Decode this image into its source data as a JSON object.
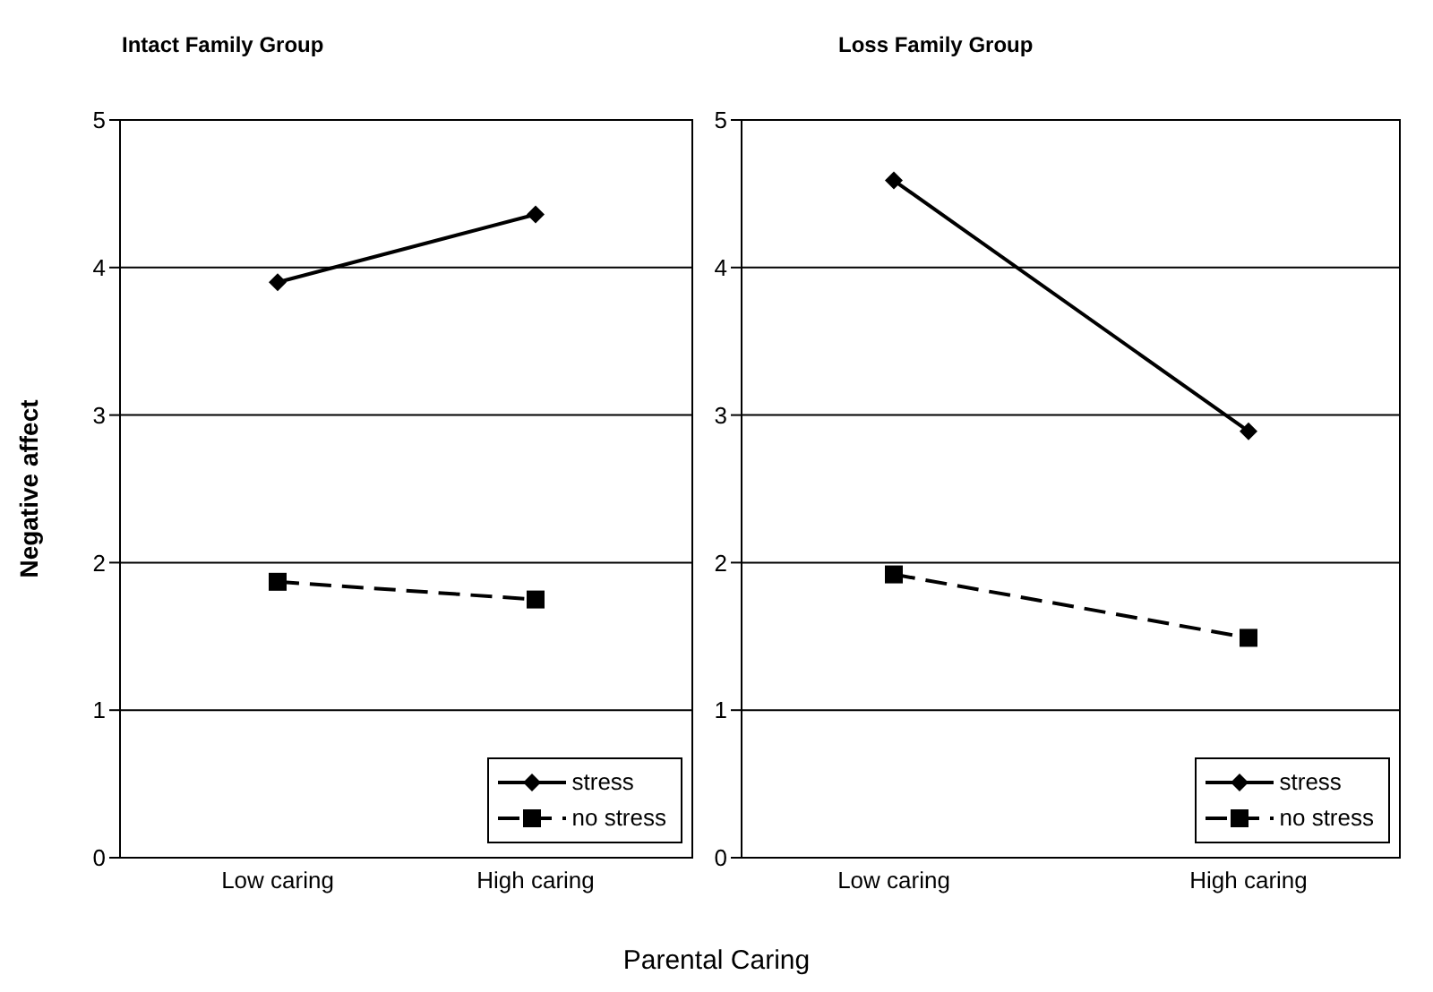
{
  "chart_data": [
    {
      "type": "line",
      "title": "Intact Family Group",
      "ylabel": "Negative affect",
      "xlabel": "Parental Caring",
      "categories": [
        "Low caring",
        "High caring"
      ],
      "ylim": [
        0,
        5
      ],
      "yticks": [
        0,
        1,
        2,
        3,
        4,
        5
      ],
      "grid": "y",
      "legend": "bottom right",
      "series": [
        {
          "name": "stress",
          "color": "#000000",
          "values": [
            3.9,
            4.36
          ],
          "marker": "diamond",
          "line_style": "solid"
        },
        {
          "name": "no stress",
          "color": "#000000",
          "values": [
            1.87,
            1.75
          ],
          "marker": "square",
          "line_style": "dashed"
        }
      ]
    },
    {
      "type": "line",
      "title": "Loss Family Group",
      "categories": [
        "Low caring",
        "High caring"
      ],
      "ylim": [
        0,
        5
      ],
      "yticks": [
        0,
        1,
        2,
        3,
        4,
        5
      ],
      "grid": "y",
      "legend": "bottom right",
      "series": [
        {
          "name": "stress",
          "color": "#000000",
          "values": [
            4.59,
            2.89
          ],
          "marker": "diamond",
          "line_style": "solid"
        },
        {
          "name": "no stress",
          "color": "#000000",
          "values": [
            1.92,
            1.49
          ],
          "marker": "square",
          "line_style": "dashed"
        }
      ]
    }
  ]
}
